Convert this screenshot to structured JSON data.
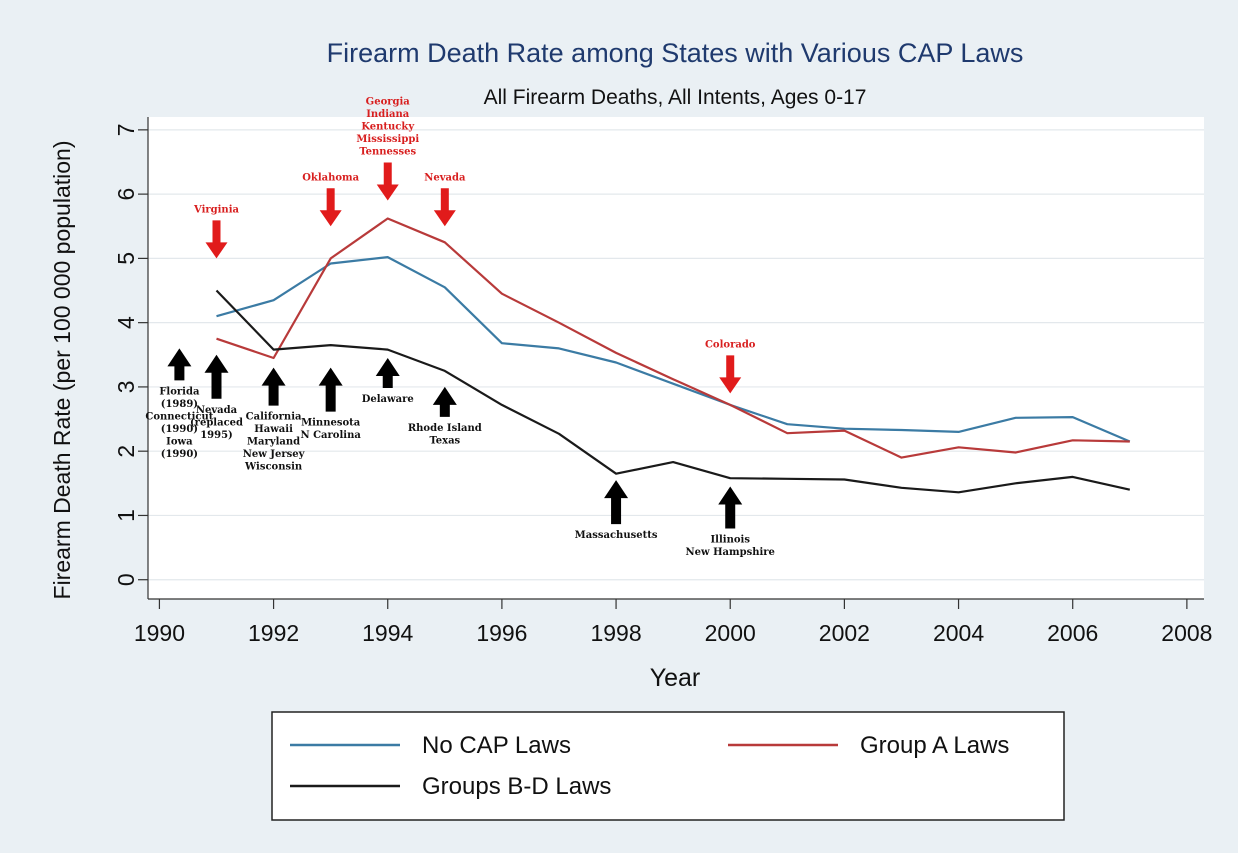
{
  "chart_data": {
    "type": "line",
    "title": "Firearm Death Rate among States with Various CAP Laws",
    "subtitle": "All Firearm Deaths, All Intents, Ages 0-17",
    "xlabel": "Year",
    "ylabel": "Firearm Death Rate (per 100 000 population)",
    "xlim": [
      1989.8,
      2008.3
    ],
    "ylim": [
      -0.3,
      7.2
    ],
    "xticks": [
      1990,
      1992,
      1994,
      1996,
      1998,
      2000,
      2002,
      2004,
      2006,
      2008
    ],
    "yticks": [
      0,
      1,
      2,
      3,
      4,
      5,
      6,
      7
    ],
    "grid": "horizontal",
    "legend_position": "bottom",
    "x": [
      1991,
      1992,
      1993,
      1994,
      1995,
      1996,
      1997,
      1998,
      1999,
      2000,
      2001,
      2002,
      2003,
      2004,
      2005,
      2006,
      2007
    ],
    "series": [
      {
        "name": "No CAP Laws",
        "color": "#3b7ba4",
        "values": [
          4.1,
          4.35,
          4.92,
          5.02,
          4.55,
          3.68,
          3.6,
          3.38,
          3.05,
          2.72,
          2.42,
          2.35,
          2.33,
          2.3,
          2.52,
          2.53,
          2.15
        ]
      },
      {
        "name": "Group A Laws",
        "color": "#b83a3a",
        "values": [
          3.75,
          3.45,
          5.0,
          5.62,
          5.25,
          4.45,
          4.0,
          3.53,
          3.12,
          2.72,
          2.28,
          2.32,
          1.9,
          2.06,
          1.98,
          2.17,
          2.15
        ]
      },
      {
        "name": "Groups B-D Laws",
        "color": "#1a1a1a",
        "values": [
          4.5,
          3.58,
          3.65,
          3.58,
          3.25,
          2.72,
          2.27,
          1.65,
          1.83,
          1.58,
          1.57,
          1.56,
          1.43,
          1.36,
          1.5,
          1.6,
          1.4
        ]
      }
    ],
    "annotations": [
      {
        "arrow": "red",
        "x": 1991,
        "y_val": 5.0,
        "lines": [
          "Virginia"
        ]
      },
      {
        "arrow": "red",
        "x": 1993,
        "y_val": 5.5,
        "lines": [
          "Oklahoma"
        ]
      },
      {
        "arrow": "red",
        "x": 1994,
        "y_val": 5.9,
        "lines": [
          "Georgia",
          "Indiana",
          "Kentucky",
          "Mississippi",
          "Tennesses"
        ]
      },
      {
        "arrow": "red",
        "x": 1995,
        "y_val": 5.5,
        "lines": [
          "Nevada"
        ]
      },
      {
        "arrow": "red",
        "x": 2000,
        "y_val": 2.9,
        "lines": [
          "Colorado"
        ]
      },
      {
        "arrow": "black",
        "x": 1990.35,
        "y_val": 3.6,
        "lines": [
          "Florida",
          "(1989)",
          "Connecticut",
          "(1990)",
          "Iowa",
          "(1990)"
        ]
      },
      {
        "arrow": "black",
        "x": 1991,
        "y_val": 3.5,
        "lines": [
          "Nevada",
          "(replaced",
          "1995)"
        ]
      },
      {
        "arrow": "black",
        "x": 1992,
        "y_val": 3.3,
        "lines": [
          "California",
          "Hawaii",
          "Maryland",
          "New Jersey",
          "Wisconsin"
        ]
      },
      {
        "arrow": "black",
        "x": 1993,
        "y_val": 3.3,
        "lines": [
          "Minnesota",
          "N Carolina"
        ]
      },
      {
        "arrow": "black",
        "x": 1994,
        "y_val": 3.45,
        "lines": [
          "Delaware"
        ]
      },
      {
        "arrow": "black",
        "x": 1995,
        "y_val": 3.0,
        "lines": [
          "Rhode Island",
          "Texas"
        ]
      },
      {
        "arrow": "black",
        "x": 1998,
        "y_val": 1.55,
        "lines": [
          "Massachusetts"
        ]
      },
      {
        "arrow": "black",
        "x": 2000,
        "y_val": 1.45,
        "lines": [
          "Illinois",
          "New Hampshire"
        ]
      }
    ]
  }
}
